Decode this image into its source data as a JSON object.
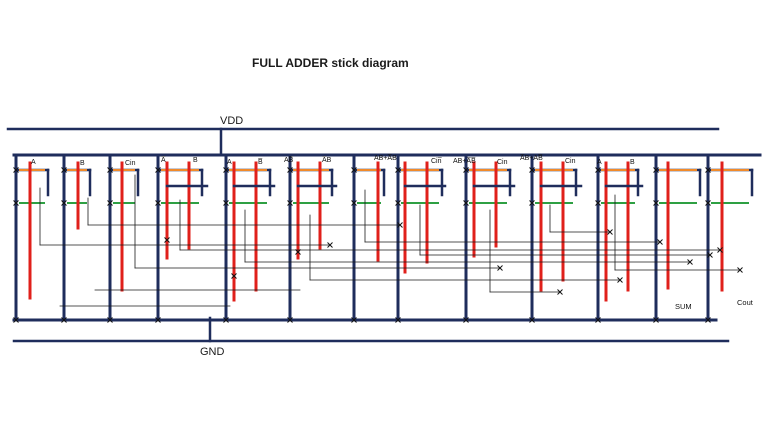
{
  "title": "FULL ADDER stick diagram",
  "rails": {
    "vdd": "VDD",
    "gnd": "GND"
  },
  "gate_labels": [
    "A",
    "B",
    "Cin",
    "A̅",
    "B",
    "A",
    "B̅",
    "AB̅",
    "A̅B",
    "AB+A̅B",
    "Cin̅",
    "AB+A̅B̅",
    "Cin",
    "A̅B+AB̅",
    "Cin",
    "A",
    "B"
  ],
  "outputs": {
    "sum": "SUM",
    "cout": "Cout"
  },
  "colors": {
    "metal": "#1f2d5c",
    "poly": "#e0201b",
    "p_diffusion": "#f08a2a",
    "n_diffusion": "#2ea043",
    "wire": "#1a1a1a"
  }
}
